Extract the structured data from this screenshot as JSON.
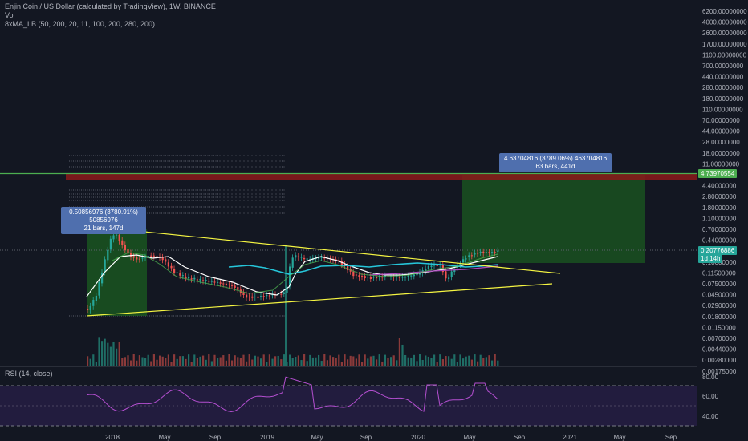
{
  "legend": {
    "title": "Enjin Coin / US Dollar (calculated by TradingView), 1W, BINANCE",
    "vol": "Vol",
    "ma": "8xMA_LB (50, 200, 20, 11, 100, 200, 280, 200)"
  },
  "rsi_label": "RSI (14, close)",
  "price_axis": [
    "6200.00000000",
    "4000.00000000",
    "2600.00000000",
    "1700.00000000",
    "1100.00000000",
    "700.00000000",
    "440.00000000",
    "280.00000000",
    "180.00000000",
    "110.00000000",
    "70.00000000",
    "44.00000000",
    "28.00000000",
    "18.00000000",
    "11.00000000",
    "7.00000000",
    "4.40000000",
    "2.80000000",
    "1.80000000",
    "1.10000000",
    "0.70000000",
    "0.44000000",
    "0.28000000",
    "0.18000000",
    "0.11500000",
    "0.07500000",
    "0.04500000",
    "0.02900000",
    "0.01800000",
    "0.01150000",
    "0.00700000",
    "0.00440000",
    "0.00280000",
    "0.00175000"
  ],
  "rsi_axis": [
    "80.00",
    "60.00",
    "40.00"
  ],
  "time_axis": [
    "2018",
    "May",
    "Sep",
    "2019",
    "May",
    "Sep",
    "2020",
    "May",
    "Sep",
    "2021",
    "May",
    "Sep"
  ],
  "price_tags": {
    "target": "4.73970554",
    "current": "0.20776886",
    "countdown": "1d 14h"
  },
  "measure_left": {
    "line1": "0.50856976 (3780.91%) 50856976",
    "line2": "21 bars, 147d"
  },
  "measure_right": {
    "line1": "4.63704816 (3789.06%) 463704816",
    "line2": "63 bars, 441d"
  },
  "colors": {
    "background": "#131722",
    "up": "#26a69a",
    "down": "#ef5350",
    "target_line": "#4caf50",
    "trendline": "#f5f542",
    "rsi": "#9c27b0"
  }
}
